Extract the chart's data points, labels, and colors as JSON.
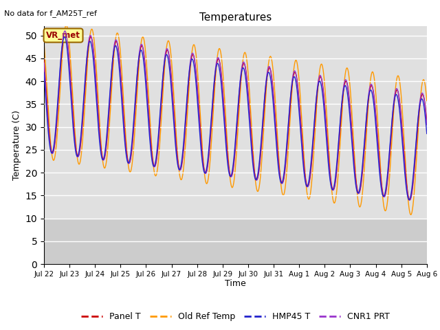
{
  "title": "Temperatures",
  "xlabel": "Time",
  "ylabel": "Temperature (C)",
  "annotation": "No data for f_AM25T_ref",
  "vr_label": "VR_met",
  "ylim": [
    0,
    52
  ],
  "yticks": [
    0,
    5,
    10,
    15,
    20,
    25,
    30,
    35,
    40,
    45,
    50
  ],
  "colors": {
    "Panel T": "#cc0000",
    "Old Ref Temp": "#ff9900",
    "HMP45 T": "#2222cc",
    "CNR1 PRT": "#9933cc"
  },
  "legend_labels": [
    "Panel T",
    "Old Ref Temp",
    "HMP45 T",
    "CNR1 PRT"
  ],
  "bg_color": "#e0e0e0",
  "bg_band_color": "#cccccc",
  "fig_bg": "#ffffff",
  "n_points": 5000,
  "shade_below": 10
}
